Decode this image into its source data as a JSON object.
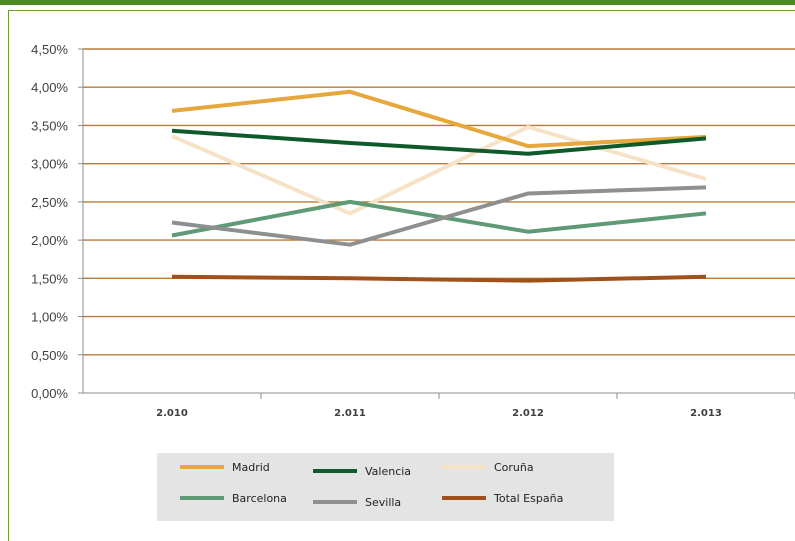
{
  "chart_data": {
    "type": "line",
    "categories": [
      "2.010",
      "2.011",
      "2.012",
      "2.013"
    ],
    "y_ticks": [
      "0,00%",
      "0,50%",
      "1,00%",
      "1,50%",
      "2,00%",
      "2,50%",
      "3,00%",
      "3,50%",
      "4,00%",
      "4,50%"
    ],
    "ylim": [
      0,
      4.5
    ],
    "grid": true,
    "legend_position": "bottom",
    "series": [
      {
        "name": "Madrid",
        "color": "#e6a73c",
        "values": [
          3.69,
          3.94,
          3.23,
          3.35
        ]
      },
      {
        "name": "Valencia",
        "color": "#0e5a2a",
        "values": [
          3.43,
          3.27,
          3.13,
          3.33
        ]
      },
      {
        "name": "Coruña",
        "color": "#f6e2c6",
        "values": [
          3.36,
          2.35,
          3.48,
          2.8
        ]
      },
      {
        "name": "Barcelona",
        "color": "#5e9a76",
        "values": [
          2.06,
          2.5,
          2.11,
          2.35
        ]
      },
      {
        "name": "Sevilla",
        "color": "#8f8f8f",
        "values": [
          2.23,
          1.94,
          2.61,
          2.69
        ]
      },
      {
        "name": "Total España",
        "color": "#a0511a",
        "values": [
          1.52,
          1.5,
          1.47,
          1.52
        ]
      }
    ]
  }
}
